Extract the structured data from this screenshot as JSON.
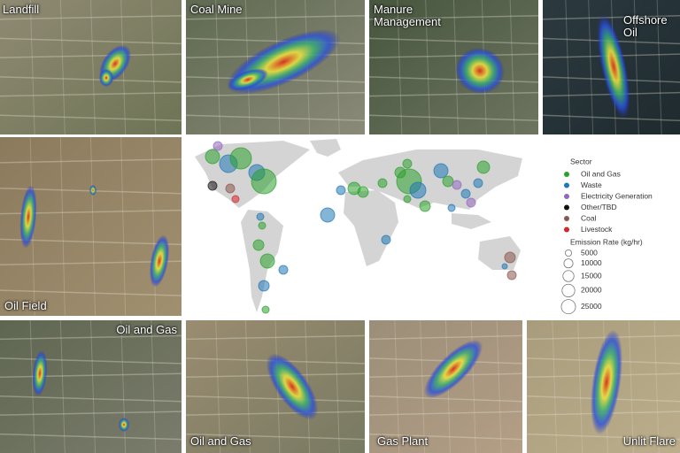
{
  "tiles": [
    {
      "label": "Landfill"
    },
    {
      "label": "Coal Mine"
    },
    {
      "label": "Manure Management"
    },
    {
      "label": "Offshore Oil"
    },
    {
      "label": "Oil Field"
    },
    {
      "label": "Oil and Gas"
    },
    {
      "label": "Oil and Gas"
    },
    {
      "label": "Gas Plant"
    },
    {
      "label": "Unlit Flare"
    }
  ],
  "map_legend": {
    "title": "Sector",
    "sectors": [
      {
        "name": "Oil and Gas",
        "color": "#2ca02c"
      },
      {
        "name": "Waste",
        "color": "#1f77b4"
      },
      {
        "name": "Electricity Generation",
        "color": "#9467bd"
      },
      {
        "name": "Other/TBD",
        "color": "#111111"
      },
      {
        "name": "Coal",
        "color": "#8c564b"
      },
      {
        "name": "Livestock",
        "color": "#d62728"
      }
    ],
    "size_title": "Emission Rate (kg/hr)",
    "sizes": [
      5000,
      10000,
      15000,
      20000,
      25000
    ]
  }
}
